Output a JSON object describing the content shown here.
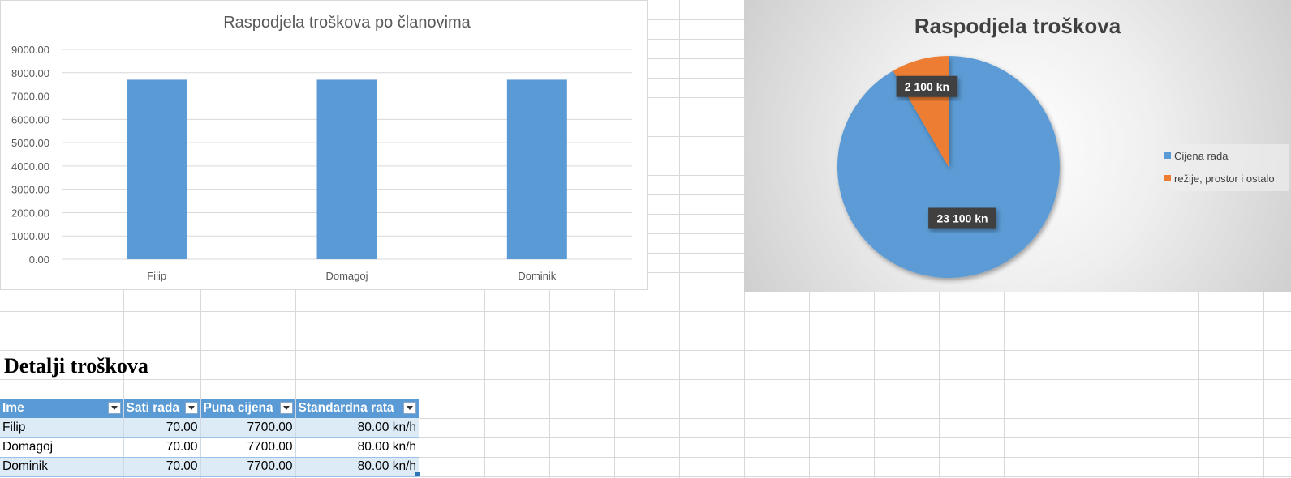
{
  "bar_chart": {
    "chart_data": {
      "type": "bar",
      "title": "Raspodjela troškova po članovima",
      "categories": [
        "Filip",
        "Domagoj",
        "Dominik"
      ],
      "series": [
        {
          "values": [
            7700,
            7700,
            7700
          ]
        }
      ],
      "ylim": [
        0,
        9000
      ],
      "yticks": [
        "0.00",
        "1000.00",
        "2000.00",
        "3000.00",
        "4000.00",
        "5000.00",
        "6000.00",
        "7000.00",
        "8000.00",
        "9000.00"
      ],
      "grid": true,
      "color": "#5b9bd5"
    }
  },
  "pie_chart": {
    "chart_data": {
      "type": "pie",
      "title": "Raspodjela troškova",
      "labels": [
        "Cijena rada",
        "režije, prostor i ostalo"
      ],
      "values": [
        23100,
        2100
      ],
      "data_labels": [
        "23 100 kn",
        "2 100 kn"
      ],
      "colors": [
        "#5b9bd5",
        "#ed7d31"
      ],
      "legend": "right"
    }
  },
  "section": {
    "title": "Detalji troškova"
  },
  "table": {
    "headers": [
      "Ime",
      "Sati rada",
      "Puna cijena",
      "Standardna rata"
    ],
    "rows": [
      [
        "Filip",
        "70.00",
        "7700.00",
        "80.00 kn/h"
      ],
      [
        "Domagoj",
        "70.00",
        "7700.00",
        "80.00 kn/h"
      ],
      [
        "Dominik",
        "70.00",
        "7700.00",
        "80.00 kn/h"
      ]
    ]
  },
  "colors": {
    "accent": "#5b9bd5",
    "header_fill": "#5b9bd5",
    "band_fill": "#ddebf7",
    "slice2": "#ed7d31"
  }
}
